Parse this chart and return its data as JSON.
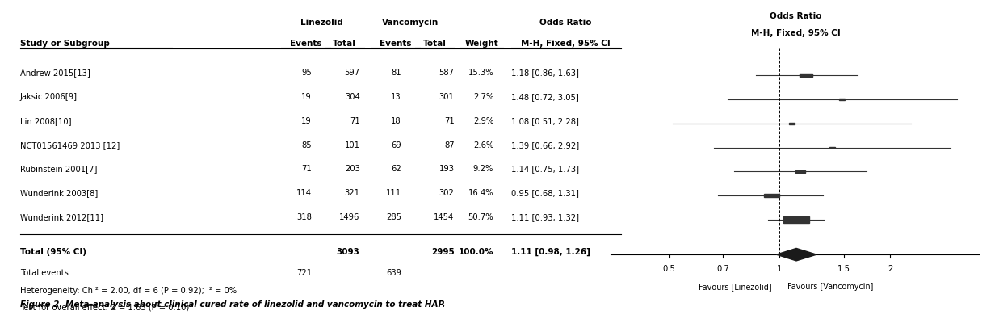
{
  "studies": [
    {
      "name": "Andrew 2015[13]",
      "linez_events": 95,
      "linez_total": 597,
      "vanc_events": 81,
      "vanc_total": 587,
      "weight": "15.3%",
      "or": 1.18,
      "ci_low": 0.86,
      "ci_high": 1.63,
      "sq_size": 3.5
    },
    {
      "name": "Jaksic 2006[9]",
      "linez_events": 19,
      "linez_total": 304,
      "vanc_events": 13,
      "vanc_total": 301,
      "weight": "2.7%",
      "or": 1.48,
      "ci_low": 0.72,
      "ci_high": 3.05,
      "sq_size": 1.5
    },
    {
      "name": "Lin 2008[10]",
      "linez_events": 19,
      "linez_total": 71,
      "vanc_events": 18,
      "vanc_total": 71,
      "weight": "2.9%",
      "or": 1.08,
      "ci_low": 0.51,
      "ci_high": 2.28,
      "sq_size": 1.5
    },
    {
      "name": "NCT01561469 2013 [12]",
      "linez_events": 85,
      "linez_total": 101,
      "vanc_events": 69,
      "vanc_total": 87,
      "weight": "2.6%",
      "or": 1.39,
      "ci_low": 0.66,
      "ci_high": 2.92,
      "sq_size": 1.5
    },
    {
      "name": "Rubinstein 2001[7]",
      "linez_events": 71,
      "linez_total": 203,
      "vanc_events": 62,
      "vanc_total": 193,
      "weight": "9.2%",
      "or": 1.14,
      "ci_low": 0.75,
      "ci_high": 1.73,
      "sq_size": 2.5
    },
    {
      "name": "Wunderink 2003[8]",
      "linez_events": 114,
      "linez_total": 321,
      "vanc_events": 111,
      "vanc_total": 302,
      "weight": "16.4%",
      "or": 0.95,
      "ci_low": 0.68,
      "ci_high": 1.31,
      "sq_size": 4.0
    },
    {
      "name": "Wunderink 2012[11]",
      "linez_events": 318,
      "linez_total": 1496,
      "vanc_events": 285,
      "vanc_total": 1454,
      "weight": "50.7%",
      "or": 1.11,
      "ci_low": 0.93,
      "ci_high": 1.32,
      "sq_size": 7.0
    }
  ],
  "total": {
    "linez_total": 3093,
    "vanc_total": 2995,
    "linez_events": 721,
    "vanc_events": 639,
    "weight": "100.0%",
    "or": 1.11,
    "ci_low": 0.98,
    "ci_high": 1.26
  },
  "heterogeneity_text": "Heterogeneity: Chi² = 2.00, df = 6 (P = 0.92); I² = 0%",
  "overall_effect_text": "Test for overall effect: Z = 1.63 (P = 0.10)",
  "figure_caption": "Figure 2. Meta-analysis about clinical cured rate of linezolid and vancomycin to treat HAP.",
  "x_ticks": [
    0.5,
    0.7,
    1.0,
    1.5,
    2.0
  ],
  "x_tick_labels": [
    "0.5",
    "0.7",
    "1",
    "1.5",
    "2"
  ],
  "x_label_left": "Favours [Linezolid]",
  "x_label_right": "Favours [Vancomycin]",
  "x_min": 0.35,
  "x_max": 3.5,
  "bg_color": "#ffffff",
  "text_color": "#000000",
  "line_color": "#000000",
  "marker_color": "#333333"
}
